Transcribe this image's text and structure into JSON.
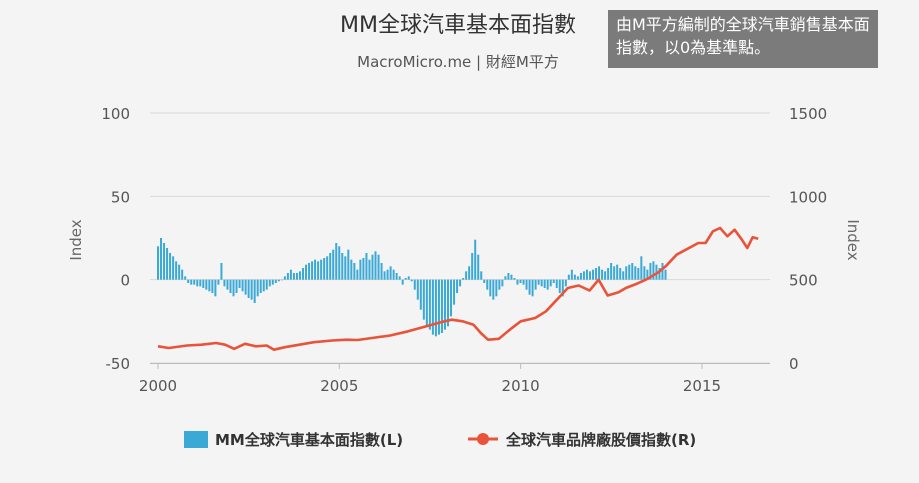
{
  "note": "由M平方編制的全球汽車銷售基本面指數，以0為基準點。",
  "colors": {
    "bar": "#3ba9d6",
    "line": "#e8533a",
    "grid": "#d8d8d8",
    "background": "#f4f4f4"
  },
  "chart_data": {
    "type": "bar+line",
    "title": "MM全球汽車基本面指數",
    "subtitle": "MacroMicro.me | 財經M平方",
    "y_left": {
      "label": "Index",
      "ylim": [
        -50,
        100
      ],
      "ticks": [
        "100",
        "50",
        "0",
        "-50"
      ]
    },
    "y_right": {
      "label": "Index",
      "ylim": [
        0,
        1500
      ],
      "ticks": [
        "1500",
        "1000",
        "500",
        "0"
      ]
    },
    "x": {
      "xlim": [
        2000,
        2016.6
      ],
      "ticks": [
        "2000",
        "2005",
        "2010",
        "2015"
      ]
    },
    "grid": "horizontal",
    "legend_position": "bottom-center",
    "series": [
      {
        "name": "MM全球汽車基本面指數(L)",
        "kind": "bar",
        "axis": "left",
        "x_start": 2000.0,
        "x_step": 0.0833,
        "values": [
          20,
          25,
          22,
          19,
          16,
          14,
          11,
          9,
          6,
          2,
          -2,
          -3,
          -3,
          -4,
          -4,
          -5,
          -6,
          -7,
          -8,
          -10,
          -3,
          10,
          -4,
          -6,
          -8,
          -10,
          -8,
          -5,
          -7,
          -9,
          -11,
          -12,
          -14,
          -10,
          -8,
          -7,
          -6,
          -4,
          -3,
          -2,
          -1,
          0,
          2,
          4,
          6,
          4,
          4,
          5,
          7,
          9,
          10,
          11,
          12,
          11,
          12,
          13,
          14,
          16,
          18,
          22,
          20,
          16,
          14,
          18,
          12,
          10,
          6,
          12,
          13,
          16,
          12,
          15,
          17,
          15,
          10,
          5,
          6,
          8,
          6,
          4,
          2,
          -3,
          1,
          2,
          -1,
          -6,
          -12,
          -18,
          -24,
          -28,
          -30,
          -33,
          -34,
          -33,
          -32,
          -30,
          -28,
          -22,
          -15,
          -8,
          -4,
          1,
          5,
          8,
          16,
          24,
          15,
          5,
          -2,
          -6,
          -10,
          -12,
          -10,
          -6,
          -4,
          2,
          4,
          3,
          1,
          -3,
          -2,
          -3,
          -6,
          -9,
          -10,
          -6,
          -3,
          -4,
          -5,
          -6,
          -4,
          -2,
          -5,
          -8,
          -10,
          -4,
          3,
          6,
          3,
          2,
          4,
          5,
          6,
          5,
          6,
          7,
          8,
          6,
          5,
          7,
          10,
          8,
          9,
          7,
          5,
          8,
          9,
          10,
          8,
          7,
          14,
          8,
          6,
          10,
          11,
          9,
          7,
          10,
          6
        ]
      },
      {
        "name": "全球汽車品牌廠股價指數(R)",
        "kind": "line",
        "axis": "right",
        "points": [
          [
            2000.0,
            100
          ],
          [
            2000.3,
            90
          ],
          [
            2000.8,
            105
          ],
          [
            2001.2,
            110
          ],
          [
            2001.6,
            120
          ],
          [
            2001.85,
            110
          ],
          [
            2002.1,
            85
          ],
          [
            2002.4,
            115
          ],
          [
            2002.7,
            100
          ],
          [
            2003.0,
            105
          ],
          [
            2003.2,
            80
          ],
          [
            2003.5,
            95
          ],
          [
            2003.9,
            110
          ],
          [
            2004.3,
            125
          ],
          [
            2004.8,
            135
          ],
          [
            2005.2,
            140
          ],
          [
            2005.5,
            138
          ],
          [
            2005.9,
            150
          ],
          [
            2006.4,
            165
          ],
          [
            2006.9,
            190
          ],
          [
            2007.4,
            220
          ],
          [
            2007.8,
            245
          ],
          [
            2008.1,
            260
          ],
          [
            2008.4,
            250
          ],
          [
            2008.7,
            230
          ],
          [
            2008.9,
            180
          ],
          [
            2009.1,
            140
          ],
          [
            2009.4,
            145
          ],
          [
            2009.7,
            200
          ],
          [
            2010.0,
            250
          ],
          [
            2010.4,
            270
          ],
          [
            2010.7,
            310
          ],
          [
            2011.0,
            380
          ],
          [
            2011.3,
            450
          ],
          [
            2011.6,
            465
          ],
          [
            2011.9,
            435
          ],
          [
            2012.15,
            500
          ],
          [
            2012.4,
            405
          ],
          [
            2012.7,
            425
          ],
          [
            2012.9,
            450
          ],
          [
            2013.2,
            475
          ],
          [
            2013.5,
            505
          ],
          [
            2013.8,
            545
          ],
          [
            2014.0,
            580
          ],
          [
            2014.3,
            650
          ],
          [
            2014.6,
            685
          ],
          [
            2014.9,
            720
          ],
          [
            2015.1,
            720
          ],
          [
            2015.3,
            790
          ],
          [
            2015.5,
            810
          ],
          [
            2015.7,
            760
          ],
          [
            2015.9,
            800
          ],
          [
            2016.1,
            740
          ],
          [
            2016.25,
            690
          ],
          [
            2016.4,
            755
          ],
          [
            2016.55,
            745
          ]
        ]
      }
    ]
  }
}
